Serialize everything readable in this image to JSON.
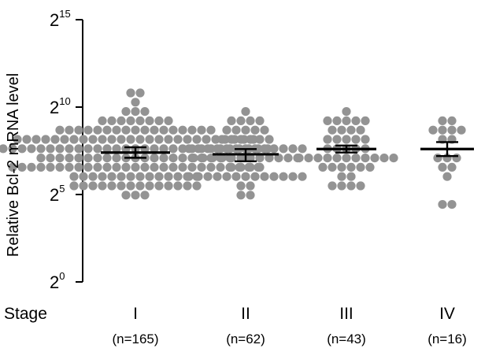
{
  "chart_data": {
    "type": "scatter",
    "title": "",
    "ylabel": "Relative Bcl-2 mRNA level",
    "xlabel": "Stage",
    "y_scale": "log2",
    "ylim_exponent": [
      0,
      15
    ],
    "y_tick_base": "2",
    "y_ticks": [
      {
        "base": "2",
        "exp": "0",
        "value": 0
      },
      {
        "base": "2",
        "exp": "5",
        "value": 5
      },
      {
        "base": "2",
        "exp": "10",
        "value": 10
      },
      {
        "base": "2",
        "exp": "15",
        "value": 15
      }
    ],
    "grid": false,
    "point_color": "#939393",
    "groups": [
      {
        "label": "I",
        "n_label": "(n=165)",
        "n": 165,
        "mean_exp": 7.4,
        "sem_low_exp": 7.1,
        "sem_high_exp": 7.7,
        "min_exp": 5.1,
        "max_exp": 10.6
      },
      {
        "label": "II",
        "n_label": "(n=62)",
        "n": 62,
        "mean_exp": 7.3,
        "sem_low_exp": 6.9,
        "sem_high_exp": 7.6,
        "min_exp": 5.1,
        "max_exp": 9.6
      },
      {
        "label": "III",
        "n_label": "(n=43)",
        "n": 43,
        "mean_exp": 7.6,
        "sem_low_exp": 7.4,
        "sem_high_exp": 7.8,
        "min_exp": 5.4,
        "max_exp": 9.6
      },
      {
        "label": "IV",
        "n_label": "(n=16)",
        "n": 16,
        "mean_exp": 7.6,
        "sem_low_exp": 7.2,
        "sem_high_exp": 8.0,
        "min_exp": 4.4,
        "max_exp": 9.4
      }
    ]
  }
}
